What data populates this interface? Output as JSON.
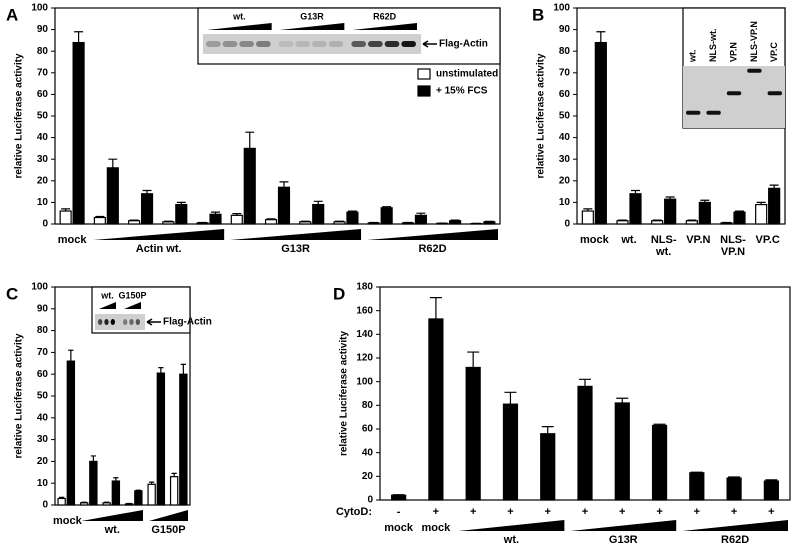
{
  "chart_data": [
    {
      "type": "bar",
      "label": "A",
      "ylabel": "relative Luciferase activity",
      "ylim": [
        0,
        100
      ],
      "yticks": [
        0,
        10,
        20,
        30,
        40,
        50,
        60,
        70,
        80,
        90,
        100
      ],
      "categories": [
        "mock",
        null,
        null,
        null,
        null,
        null,
        null,
        null,
        null,
        null,
        null,
        null,
        null
      ],
      "x_groups": [
        "Actin wt.",
        "G13R",
        "R62D"
      ],
      "legend": true,
      "series": [
        {
          "name": "unstimulated",
          "color": "#ffffff",
          "values": [
            6,
            3,
            1.5,
            1,
            0.5,
            4,
            2,
            1,
            1,
            0.5,
            0.5,
            0.3,
            0.2
          ],
          "errors": [
            1,
            0.5,
            0.3,
            0.3,
            0.2,
            0.8,
            0.4,
            0.3,
            0.3,
            0.2,
            0.2,
            0.1,
            0.1
          ]
        },
        {
          "name": "+ 15% FCS",
          "color": "#000000",
          "values": [
            84,
            26,
            14,
            9,
            4.5,
            35,
            17,
            9,
            5.5,
            7.5,
            4,
            1.5,
            1
          ],
          "errors": [
            5,
            4,
            1.5,
            1,
            1,
            7.5,
            2.5,
            1.5,
            0.5,
            0.5,
            1,
            0.3,
            0.2
          ]
        }
      ],
      "inset": {
        "lanes": [
          "wt.",
          "G13R",
          "R62D"
        ],
        "marker": "Flag-Actin"
      }
    },
    {
      "type": "bar",
      "label": "B",
      "ylabel": "relative Luciferase activity",
      "ylim": [
        0,
        100
      ],
      "yticks": [
        0,
        10,
        20,
        30,
        40,
        50,
        60,
        70,
        80,
        90,
        100
      ],
      "categories": [
        "mock",
        "wt.",
        "NLS-wt.",
        "VP.N",
        "NLS-VP.N",
        "VP.C"
      ],
      "series": [
        {
          "name": "unstimulated",
          "color": "#ffffff",
          "values": [
            6,
            1.5,
            1.5,
            1.5,
            0.5,
            9
          ],
          "errors": [
            1,
            0.3,
            0.3,
            0.3,
            0.2,
            1
          ]
        },
        {
          "name": "+ 15% FCS",
          "color": "#000000",
          "values": [
            84,
            14,
            11.5,
            10,
            5.5,
            16.5
          ],
          "errors": [
            5,
            1.5,
            1,
            1,
            0.5,
            1.5
          ]
        }
      ],
      "inset": {
        "lanes": [
          "wt.",
          "NLS-wt.",
          "VP.N",
          "NLS-VP.N",
          "VP.C"
        ]
      }
    },
    {
      "type": "bar",
      "label": "C",
      "ylabel": "relative Luciferase activity",
      "ylim": [
        0,
        100
      ],
      "yticks": [
        0,
        10,
        20,
        30,
        40,
        50,
        60,
        70,
        80,
        90,
        100
      ],
      "categories": [
        "mock",
        null,
        null,
        null,
        null,
        null
      ],
      "x_groups": [
        "wt.",
        "G150P"
      ],
      "series": [
        {
          "name": "unstimulated",
          "color": "#ffffff",
          "values": [
            3,
            1,
            1,
            0.5,
            9.5,
            13
          ],
          "errors": [
            0.5,
            0.3,
            0.3,
            0.2,
            1,
            1.5
          ]
        },
        {
          "name": "+ 15% FCS",
          "color": "#000000",
          "values": [
            66,
            20,
            11,
            6.5,
            60.5,
            60
          ],
          "errors": [
            5,
            2.5,
            1.5,
            0.3,
            2.5,
            4.5
          ]
        }
      ],
      "inset": {
        "lanes": [
          "wt.",
          "G150P"
        ],
        "marker": "Flag-Actin"
      }
    },
    {
      "type": "bar",
      "label": "D",
      "ylabel": "relative Luciferase activity",
      "ylim": [
        0,
        180
      ],
      "yticks": [
        0,
        20,
        40,
        60,
        80,
        100,
        120,
        140,
        160,
        180
      ],
      "row_label": "CytoD:",
      "categories": [
        "-",
        "+",
        "+",
        "+",
        "+",
        "+",
        "+",
        "+",
        "+",
        "+",
        "+"
      ],
      "categories2": [
        "mock",
        "mock",
        null,
        null,
        null,
        null,
        null,
        null,
        null,
        null,
        null
      ],
      "x_groups": [
        "wt.",
        "G13R",
        "R62D"
      ],
      "series": [
        {
          "color": "#000000",
          "values": [
            4,
            153,
            112,
            81,
            56,
            96,
            82,
            63,
            23,
            18.5,
            16
          ],
          "errors": [
            0.5,
            18,
            13,
            10,
            6,
            6,
            4,
            1,
            0.5,
            1,
            1
          ]
        }
      ]
    }
  ]
}
